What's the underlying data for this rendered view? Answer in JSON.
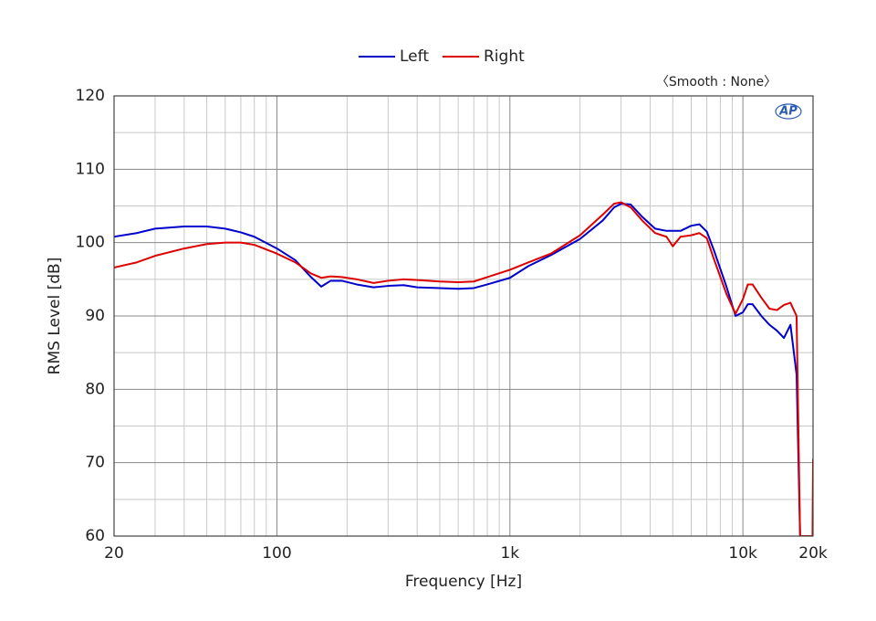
{
  "chart_data": {
    "type": "line",
    "annotation": "〈Smooth : None〉",
    "logo": "AP",
    "xlabel": "Frequency [Hz]",
    "ylabel": "RMS Level [dB]",
    "xscale": "log",
    "grid": true,
    "legend": "top",
    "xlim": [
      20,
      20000
    ],
    "ylim": [
      60,
      120
    ],
    "xticks": [
      20,
      100,
      {
        "value": 1000,
        "label": "1k"
      },
      {
        "value": 10000,
        "label": "10k"
      },
      {
        "value": 20000,
        "label": "20k"
      }
    ],
    "yticks": [
      60,
      70,
      80,
      90,
      100,
      110,
      120
    ],
    "x_minor_grid": [
      30,
      40,
      50,
      60,
      70,
      80,
      90,
      200,
      300,
      400,
      500,
      600,
      700,
      800,
      900,
      2000,
      3000,
      4000,
      5000,
      6000,
      7000,
      8000,
      9000
    ],
    "y_minor_grid": [
      65,
      75,
      85,
      95,
      105,
      115
    ],
    "x": [
      20,
      25,
      30,
      40,
      50,
      60,
      70,
      80,
      100,
      120,
      140,
      155,
      170,
      190,
      220,
      260,
      300,
      350,
      400,
      500,
      600,
      700,
      800,
      1000,
      1200,
      1500,
      2000,
      2500,
      2800,
      3000,
      3300,
      3700,
      4200,
      4700,
      5000,
      5400,
      6000,
      6500,
      7000,
      7500,
      8500,
      9300,
      10000,
      10500,
      11000,
      12000,
      13000,
      14000,
      15000,
      16000,
      17000,
      17600,
      19900,
      20000
    ],
    "series": [
      {
        "name": "Left",
        "color": "#0000cc",
        "values": [
          100.8,
          101.3,
          101.9,
          102.2,
          102.2,
          101.9,
          101.4,
          100.8,
          99.2,
          97.6,
          95.3,
          94.0,
          94.8,
          94.8,
          94.3,
          93.9,
          94.1,
          94.2,
          93.9,
          93.8,
          93.7,
          93.8,
          94.3,
          95.2,
          96.8,
          98.3,
          100.5,
          103.0,
          104.8,
          105.3,
          105.2,
          103.5,
          101.9,
          101.6,
          101.6,
          101.6,
          102.3,
          102.5,
          101.5,
          99.0,
          94.0,
          90.0,
          90.5,
          91.6,
          91.6,
          90.0,
          88.8,
          88.0,
          87.0,
          88.8,
          82.0,
          60,
          null,
          null
        ]
      },
      {
        "name": "Right",
        "color": "#dd0000",
        "values": [
          96.6,
          97.3,
          98.2,
          99.2,
          99.8,
          100.0,
          100.0,
          99.7,
          98.5,
          97.3,
          95.8,
          95.2,
          95.4,
          95.3,
          95.0,
          94.5,
          94.8,
          95.0,
          94.9,
          94.7,
          94.6,
          94.7,
          95.3,
          96.3,
          97.3,
          98.5,
          101.0,
          103.8,
          105.3,
          105.5,
          104.8,
          103.0,
          101.3,
          100.8,
          99.5,
          100.8,
          101.0,
          101.3,
          100.6,
          97.8,
          93.0,
          90.3,
          92.3,
          94.3,
          94.3,
          92.5,
          91.0,
          90.8,
          91.5,
          91.8,
          90.0,
          60,
          60,
          70.5
        ]
      }
    ]
  }
}
